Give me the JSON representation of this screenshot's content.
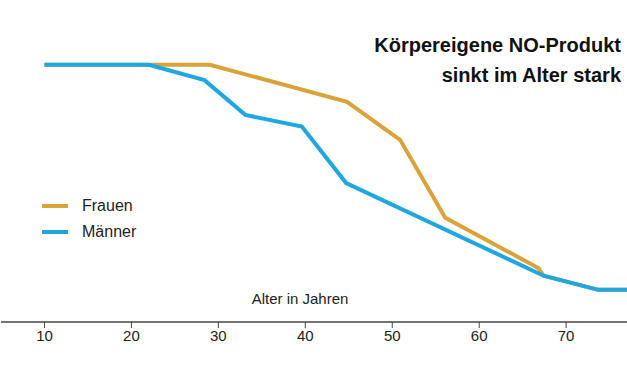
{
  "chart_data": {
    "type": "line",
    "title": "Körpereigene NO-Produkt\nsinkt im Alter stark",
    "x_label": "Alter in Jahren",
    "xlim": [
      5,
      77
    ],
    "xticks": [
      10,
      20,
      30,
      40,
      50,
      60,
      70
    ],
    "ylim": [
      0,
      110
    ],
    "yticks": [],
    "tick_labels": "x",
    "grid": false,
    "legend": "left",
    "series": [
      {
        "name": "Frauen",
        "color": "#d9a33a",
        "x": [
          10,
          29,
          44.8,
          50.9,
          56.1,
          66.8,
          67.4,
          73.7,
          77
        ],
        "values": [
          100,
          100,
          85.6,
          70.8,
          40.5,
          21,
          18,
          12.5,
          12.5
        ]
      },
      {
        "name": "Männer",
        "color": "#1ea7e1",
        "x": [
          10,
          22,
          28.4,
          33.1,
          39.6,
          44.7,
          67.4,
          73.7,
          77
        ],
        "values": [
          100,
          100,
          94,
          80.5,
          76,
          54,
          18,
          12.5,
          12.5
        ]
      }
    ]
  }
}
